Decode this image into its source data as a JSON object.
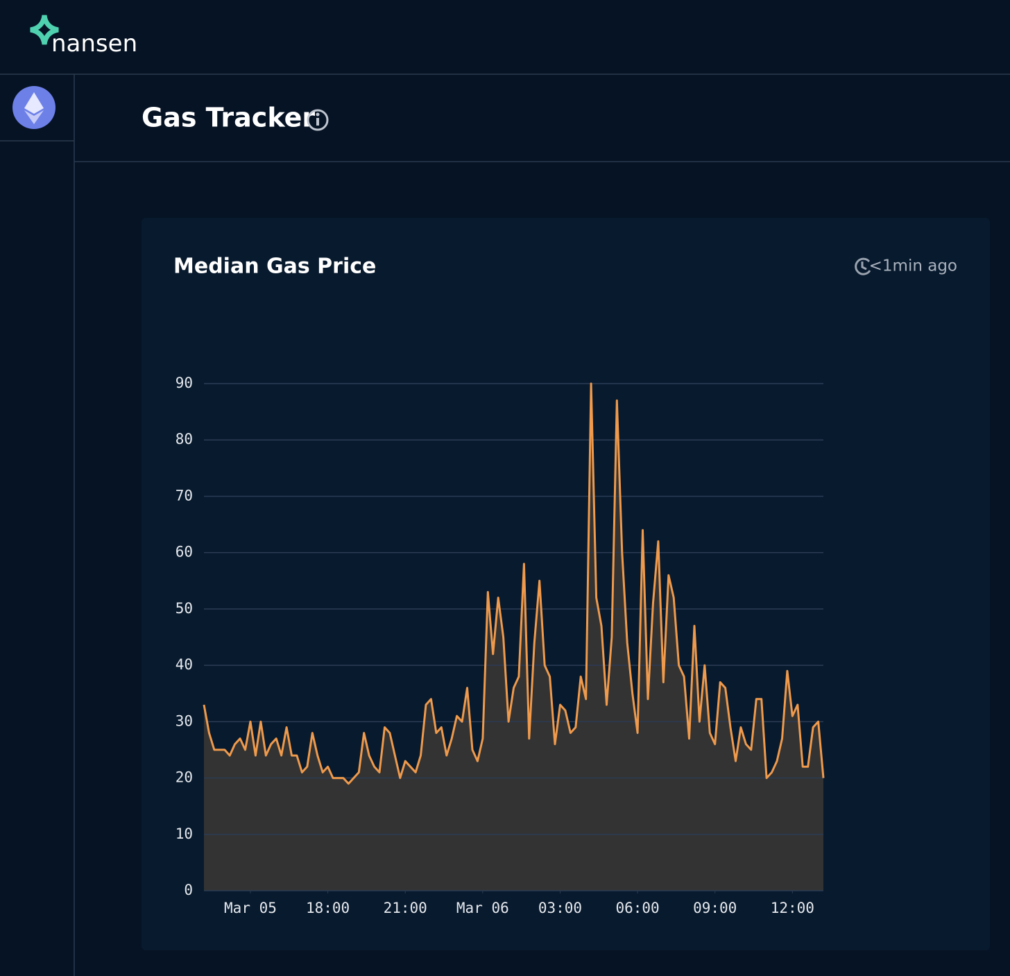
{
  "header": {
    "logo": "nansen"
  },
  "page": {
    "title": "Gas Tracker"
  },
  "card": {
    "updated": "<1min ago"
  },
  "chart_data": {
    "type": "area",
    "title": "Median Gas Price",
    "color": "#ef9a4c",
    "fill": "#333333",
    "values": [
      33,
      28,
      25,
      25,
      25,
      24,
      26,
      27,
      25,
      30,
      24,
      30,
      24,
      26,
      27,
      24,
      29,
      24,
      24,
      21,
      22,
      28,
      24,
      21,
      22,
      20,
      20,
      20,
      19,
      20,
      21,
      28,
      24,
      22,
      21,
      29,
      28,
      24,
      20,
      23,
      22,
      21,
      24,
      33,
      34,
      28,
      29,
      24,
      27,
      31,
      30,
      36,
      25,
      23,
      27,
      53,
      42,
      52,
      45,
      30,
      36,
      38,
      58,
      27,
      44,
      55,
      40,
      38,
      26,
      33,
      32,
      28,
      29,
      38,
      34,
      90,
      52,
      47,
      33,
      45,
      87,
      60,
      44,
      35,
      28,
      64,
      34,
      51,
      62,
      37,
      56,
      52,
      40,
      38,
      27,
      47,
      30,
      40,
      28,
      26,
      37,
      36,
      29,
      23,
      29,
      26,
      25,
      34,
      34,
      20,
      21,
      23,
      27,
      39,
      31,
      33,
      22,
      22,
      29,
      30,
      20
    ],
    "xlim": [
      0,
      120
    ],
    "xticks": [
      {
        "value": 9,
        "label": "Mar 05"
      },
      {
        "value": 24,
        "label": "18:00"
      },
      {
        "value": 39,
        "label": "21:00"
      },
      {
        "value": 54,
        "label": "Mar 06"
      },
      {
        "value": 69,
        "label": "03:00"
      },
      {
        "value": 84,
        "label": "06:00"
      },
      {
        "value": 99,
        "label": "09:00"
      },
      {
        "value": 114,
        "label": "12:00"
      }
    ],
    "ylim": [
      0,
      90
    ],
    "yticks": [
      0,
      10,
      20,
      30,
      40,
      50,
      60,
      70,
      80,
      90
    ],
    "grid": true
  }
}
